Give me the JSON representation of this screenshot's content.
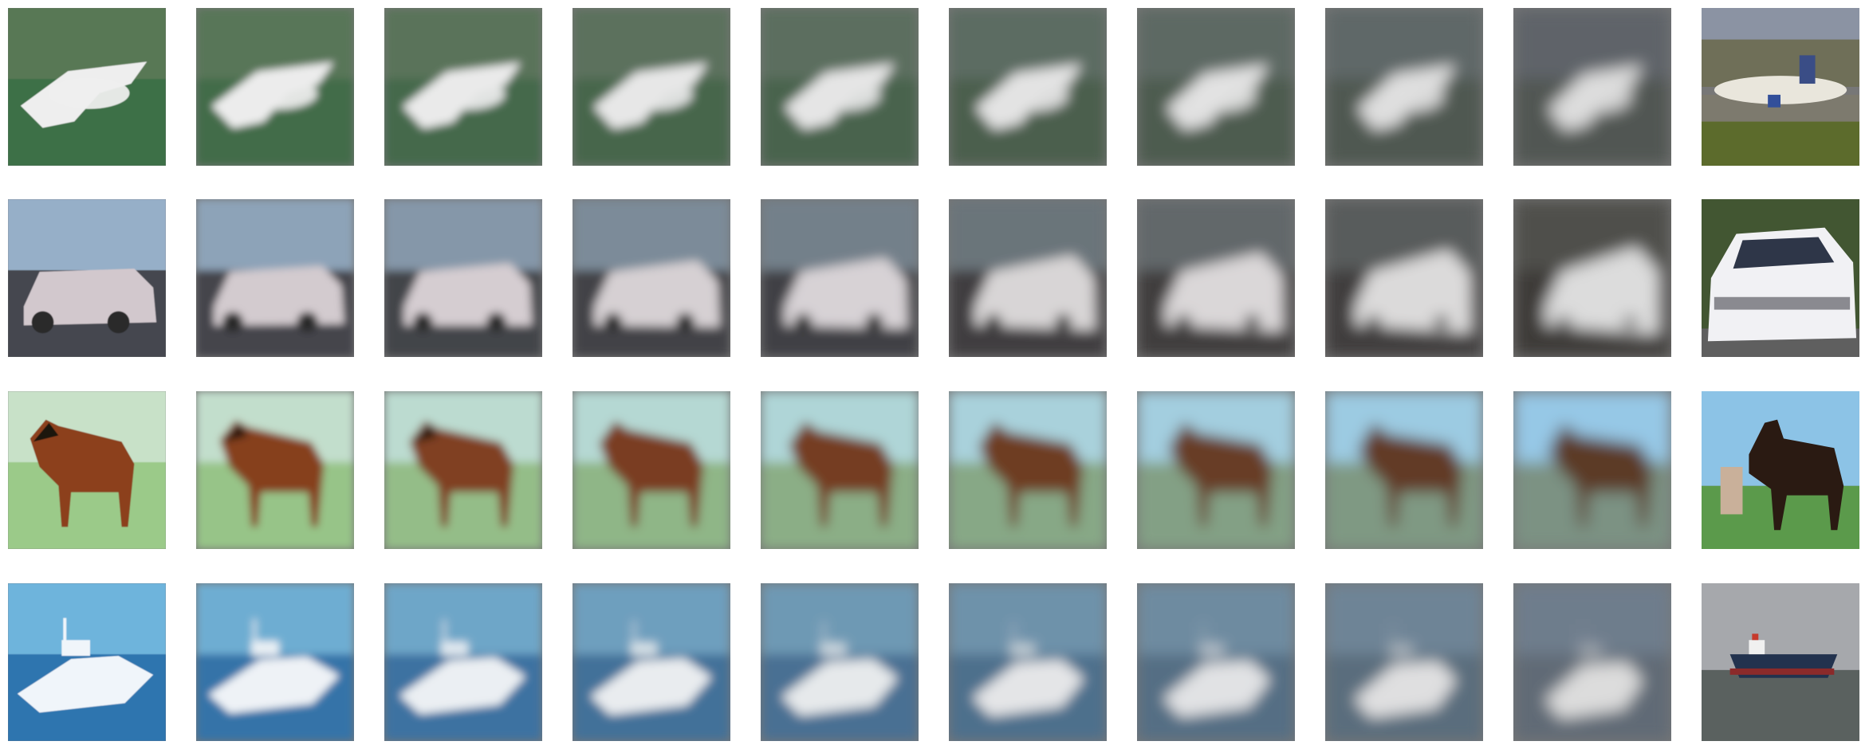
{
  "figure": {
    "rows": [
      {
        "subject": "airplane",
        "target": "airliner",
        "interpolation_steps": 10,
        "source_scene": "green-grass",
        "target_scene": "airport-runway"
      },
      {
        "subject": "car",
        "target": "white-car",
        "interpolation_steps": 10,
        "source_scene": "mountain-road",
        "target_scene": "green-trees"
      },
      {
        "subject": "horse",
        "target": "black-horse",
        "interpolation_steps": 10,
        "source_scene": "green-field",
        "target_scene": "grass-sky"
      },
      {
        "subject": "boat",
        "target": "ship",
        "interpolation_steps": 10,
        "source_scene": "blue-water",
        "target_scene": "gray-sea"
      }
    ]
  }
}
